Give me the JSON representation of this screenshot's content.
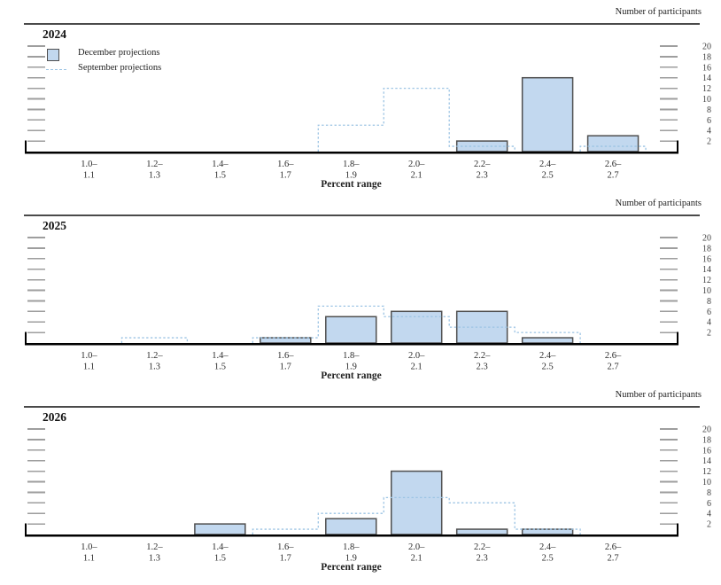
{
  "figure": {
    "right_axis_label": "Number of participants",
    "xlabel": "Percent range",
    "legend_december": "December projections",
    "legend_september": "September projections",
    "colors": {
      "bar_fill": "#c2d8ef",
      "bar_border": "#4f4f4f",
      "dashed_line": "#9cc4e4",
      "tick": "#9e9e9e",
      "tick_number": "#3d3d3d",
      "axis": "#000000",
      "rule": "#4a4a4a"
    }
  },
  "chart_data": [
    {
      "type": "bar",
      "title": "2024",
      "categories": [
        [
          "1.0–",
          "1.1"
        ],
        [
          "1.2–",
          "1.3"
        ],
        [
          "1.4–",
          "1.5"
        ],
        [
          "1.6–",
          "1.7"
        ],
        [
          "1.8–",
          "1.9"
        ],
        [
          "2.0–",
          "2.1"
        ],
        [
          "2.2–",
          "2.3"
        ],
        [
          "2.4–",
          "2.5"
        ],
        [
          "2.6–",
          "2.7"
        ]
      ],
      "series": [
        {
          "name": "December projections",
          "style": "filled-bar",
          "values": [
            0,
            0,
            0,
            0,
            0,
            0,
            2,
            14,
            3
          ]
        },
        {
          "name": "September projections",
          "style": "dashed-step-outline",
          "values": [
            0,
            0,
            0,
            0,
            5,
            12,
            1,
            0,
            1
          ]
        }
      ],
      "xlabel": "Percent range",
      "ylabel": "Number of participants",
      "ylim": [
        0,
        21
      ],
      "yticks": [
        2,
        4,
        6,
        8,
        10,
        12,
        14,
        16,
        18,
        20
      ],
      "legend_position": "top-left",
      "grid": false
    },
    {
      "type": "bar",
      "title": "2025",
      "categories": [
        [
          "1.0–",
          "1.1"
        ],
        [
          "1.2–",
          "1.3"
        ],
        [
          "1.4–",
          "1.5"
        ],
        [
          "1.6–",
          "1.7"
        ],
        [
          "1.8–",
          "1.9"
        ],
        [
          "2.0–",
          "2.1"
        ],
        [
          "2.2–",
          "2.3"
        ],
        [
          "2.4–",
          "2.5"
        ],
        [
          "2.6–",
          "2.7"
        ]
      ],
      "series": [
        {
          "name": "December projections",
          "style": "filled-bar",
          "values": [
            0,
            0,
            0,
            1,
            5,
            6,
            6,
            1,
            0
          ]
        },
        {
          "name": "September projections",
          "style": "dashed-step-outline",
          "values": [
            0,
            1,
            0,
            1,
            7,
            5,
            3,
            2,
            0
          ]
        }
      ],
      "xlabel": "Percent range",
      "ylabel": "Number of participants",
      "ylim": [
        0,
        21
      ],
      "yticks": [
        2,
        4,
        6,
        8,
        10,
        12,
        14,
        16,
        18,
        20
      ],
      "legend_position": "none",
      "grid": false
    },
    {
      "type": "bar",
      "title": "2026",
      "categories": [
        [
          "1.0–",
          "1.1"
        ],
        [
          "1.2–",
          "1.3"
        ],
        [
          "1.4–",
          "1.5"
        ],
        [
          "1.6–",
          "1.7"
        ],
        [
          "1.8–",
          "1.9"
        ],
        [
          "2.0–",
          "2.1"
        ],
        [
          "2.2–",
          "2.3"
        ],
        [
          "2.4–",
          "2.5"
        ],
        [
          "2.6–",
          "2.7"
        ]
      ],
      "series": [
        {
          "name": "December projections",
          "style": "filled-bar",
          "values": [
            0,
            0,
            2,
            0,
            3,
            12,
            1,
            1,
            0
          ]
        },
        {
          "name": "September projections",
          "style": "dashed-step-outline",
          "values": [
            0,
            0,
            0,
            1,
            4,
            7,
            6,
            1,
            0
          ]
        }
      ],
      "xlabel": "Percent range",
      "ylabel": "Number of participants",
      "ylim": [
        0,
        21
      ],
      "yticks": [
        2,
        4,
        6,
        8,
        10,
        12,
        14,
        16,
        18,
        20
      ],
      "legend_position": "none",
      "grid": false
    }
  ]
}
